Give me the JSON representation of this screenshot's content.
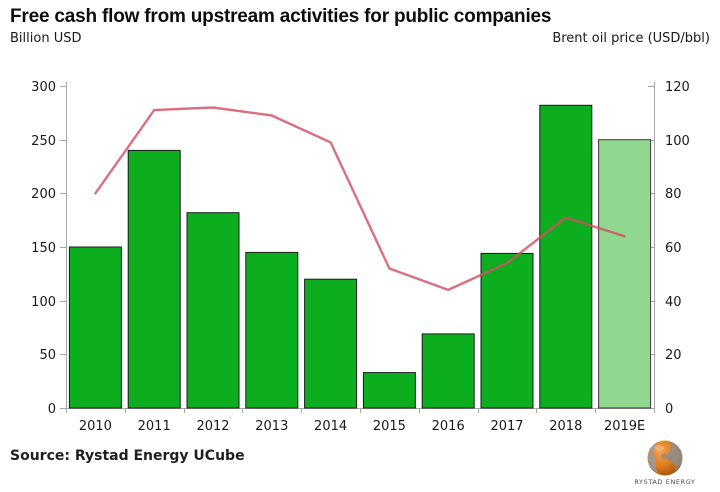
{
  "header": {
    "title": "Free cash flow from upstream activities for public companies",
    "left_axis_label": "Billion USD",
    "right_axis_label": "Brent oil price (USD/bbl)"
  },
  "footer": {
    "source": "Source: Rystad Energy UCube"
  },
  "logo": {
    "name": "rystad-energy-globe",
    "label": "RYSTAD ENERGY"
  },
  "chart_data": {
    "type": "combo",
    "title": "Free cash flow from upstream activities for public companies",
    "categories": [
      "2010",
      "2011",
      "2012",
      "2013",
      "2014",
      "2015",
      "2016",
      "2017",
      "2018",
      "2019E"
    ],
    "series": [
      {
        "name": "Free cash flow (Billion USD)",
        "type": "bar",
        "axis": "left",
        "values": [
          150,
          240,
          182,
          145,
          120,
          33,
          69,
          144,
          282,
          250
        ],
        "color": "#0cad1f",
        "border_color": "#1b1b1b",
        "estimate_index": 9,
        "estimate_color": "#92d78f",
        "estimate_border_color": "#3a3a3a"
      },
      {
        "name": "Brent oil price (USD/bbl)",
        "type": "line",
        "axis": "right",
        "values": [
          80,
          111,
          112,
          109,
          99,
          52,
          44,
          54,
          71,
          64
        ],
        "color": "#d25062",
        "opacity": 0.82
      }
    ],
    "axes": {
      "left": {
        "label": "Billion USD",
        "min": 0,
        "max": 300,
        "ticks": [
          0,
          50,
          100,
          150,
          200,
          250,
          300
        ]
      },
      "right": {
        "label": "Brent oil price (USD/bbl)",
        "min": 0,
        "max": 120,
        "ticks": [
          0,
          20,
          40,
          60,
          80,
          100,
          120
        ]
      }
    },
    "grid": false,
    "legend": "none",
    "axis_color": "#a6a6a6",
    "tick_label_color": "#1a1a1a"
  }
}
